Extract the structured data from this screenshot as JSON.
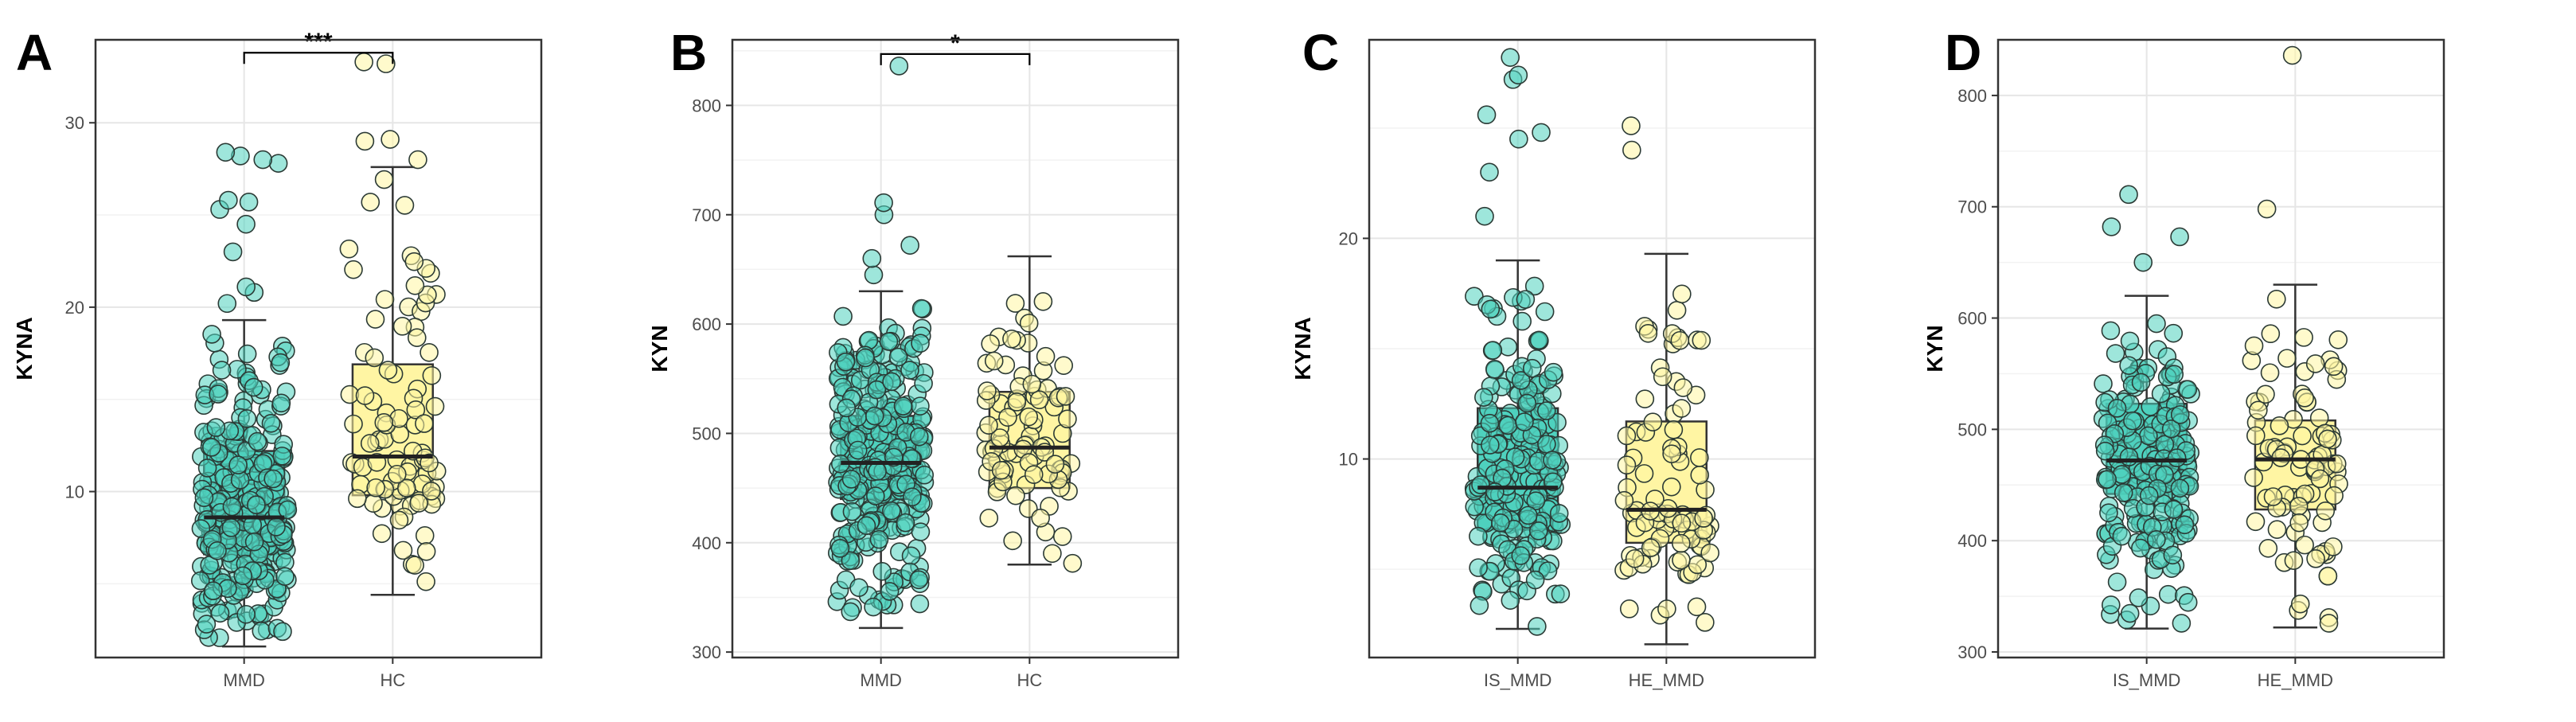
{
  "chart_data": [
    {
      "panel": "A",
      "type": "boxplot",
      "ylabel": "KYNA",
      "xlabel": "",
      "categories": [
        "MMD",
        "HC"
      ],
      "ylim": [
        1,
        34.5
      ],
      "yticks": [
        10,
        20,
        30
      ],
      "grid": true,
      "groups": [
        {
          "name": "MMD",
          "color": "#4fd1be",
          "min": 1.6,
          "q1": 6.6,
          "median": 8.6,
          "q3": 12.2,
          "max": 19.3,
          "n_points": 300,
          "high_points": [
            20.2,
            20.8,
            21.1,
            23.0,
            24.5,
            25.3,
            25.7,
            25.8,
            27.8,
            28.0,
            28.2,
            28.4
          ]
        },
        {
          "name": "HC",
          "color": "#fff5a3",
          "min": 4.4,
          "q1": 9.8,
          "median": 11.9,
          "q3": 16.9,
          "max": 27.6,
          "n_points": 90,
          "high_points": [
            28.0,
            29.0,
            29.1,
            33.2,
            33.3
          ]
        }
      ],
      "comparison": {
        "from": "MMD",
        "to": "HC",
        "label": "***",
        "y": 33.8
      }
    },
    {
      "panel": "B",
      "type": "boxplot",
      "ylabel": "KYN",
      "xlabel": "",
      "categories": [
        "MMD",
        "HC"
      ],
      "ylim": [
        295,
        860
      ],
      "yticks": [
        300,
        400,
        500,
        600,
        700,
        800
      ],
      "grid": true,
      "groups": [
        {
          "name": "MMD",
          "color": "#4fd1be",
          "min": 322,
          "q1": 440,
          "median": 473,
          "q3": 516,
          "max": 630,
          "n_points": 300,
          "high_points": [
            645,
            660,
            672,
            700,
            711,
            836
          ]
        },
        {
          "name": "HC",
          "color": "#fff5a3",
          "min": 380,
          "q1": 450,
          "median": 487,
          "q3": 538,
          "max": 662,
          "n_points": 90,
          "high_points": []
        }
      ],
      "comparison": {
        "from": "MMD",
        "to": "HC",
        "label": "*",
        "y": 847
      }
    },
    {
      "panel": "C",
      "type": "boxplot",
      "ylabel": "KYNA",
      "xlabel": "",
      "categories": [
        "IS_MMD",
        "HE_MMD"
      ],
      "ylim": [
        1,
        29
      ],
      "yticks": [
        10,
        20
      ],
      "grid": true,
      "groups": [
        {
          "name": "IS_MMD",
          "color": "#4fd1be",
          "min": 2.3,
          "q1": 6.8,
          "median": 8.7,
          "q3": 12.3,
          "max": 19.0,
          "n_points": 210,
          "high_points": [
            21.0,
            23.0,
            24.5,
            24.8,
            25.6,
            27.2,
            27.4,
            28.2
          ]
        },
        {
          "name": "HE_MMD",
          "color": "#fff5a3",
          "min": 1.6,
          "q1": 6.2,
          "median": 7.7,
          "q3": 11.7,
          "max": 19.3,
          "n_points": 90,
          "high_points": [
            24.0,
            25.1
          ]
        }
      ]
    },
    {
      "panel": "D",
      "type": "boxplot",
      "ylabel": "KYN",
      "xlabel": "",
      "categories": [
        "IS_MMD",
        "HE_MMD"
      ],
      "ylim": [
        295,
        850
      ],
      "yticks": [
        300,
        400,
        500,
        600,
        700,
        800
      ],
      "grid": true,
      "groups": [
        {
          "name": "IS_MMD",
          "color": "#4fd1be",
          "min": 321,
          "q1": 442,
          "median": 472,
          "q3": 523,
          "max": 620,
          "n_points": 210,
          "high_points": [
            650,
            673,
            682,
            711
          ]
        },
        {
          "name": "HE_MMD",
          "color": "#fff5a3",
          "min": 322,
          "q1": 428,
          "median": 473,
          "q3": 508,
          "max": 630,
          "n_points": 90,
          "high_points": [
            698,
            836
          ]
        }
      ]
    }
  ]
}
